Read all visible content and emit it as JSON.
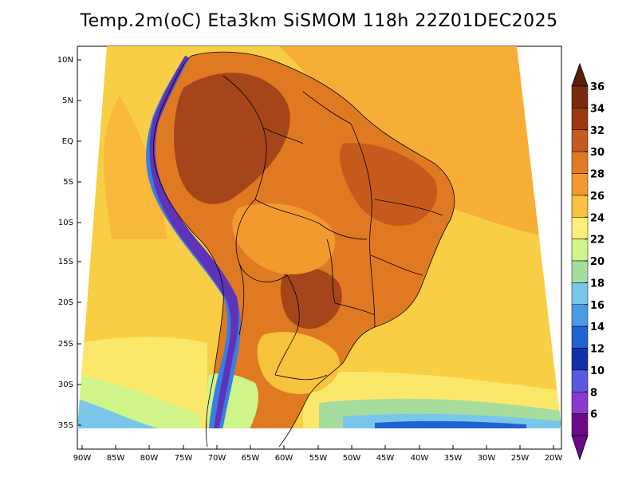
{
  "title": "Temp.2m(oC) Eta3km SiSMOM 118h 22Z01DEC2025",
  "lat_labels": [
    "10N",
    "5N",
    "EQ",
    "5S",
    "10S",
    "15S",
    "20S",
    "25S",
    "30S",
    "35S"
  ],
  "lon_labels": [
    "90W",
    "85W",
    "80W",
    "75W",
    "70W",
    "65W",
    "60W",
    "55W",
    "50W",
    "45W",
    "40W",
    "35W",
    "30W",
    "25W",
    "20W"
  ],
  "colorbar": {
    "labels": [
      "36",
      "34",
      "32",
      "30",
      "28",
      "26",
      "24",
      "22",
      "20",
      "18",
      "16",
      "14",
      "12",
      "10",
      "8",
      "6"
    ],
    "colors": [
      "#7a2a10",
      "#9c3a12",
      "#c45a1c",
      "#e07a22",
      "#f29a2e",
      "#f7c23c",
      "#fdf07a",
      "#cff58a",
      "#a6dd9e",
      "#79c6ea",
      "#4a9be6",
      "#1f62d2",
      "#1030a8",
      "#5858e0",
      "#8a3ad0",
      "#6a0a8a"
    ],
    "top_color": "#5a1e08",
    "bottom_color": "#6a0a8a"
  },
  "palette": {
    "ocean_warm": "#f6ae37",
    "ocean_mid": "#f8cf44",
    "ocean_cool": "#fbe86a",
    "land_hot": "#a5451a",
    "land_warm": "#e07a22",
    "andes_cold": "#5f33b8",
    "andes_blue": "#3a7fe0",
    "border": "#000000"
  }
}
